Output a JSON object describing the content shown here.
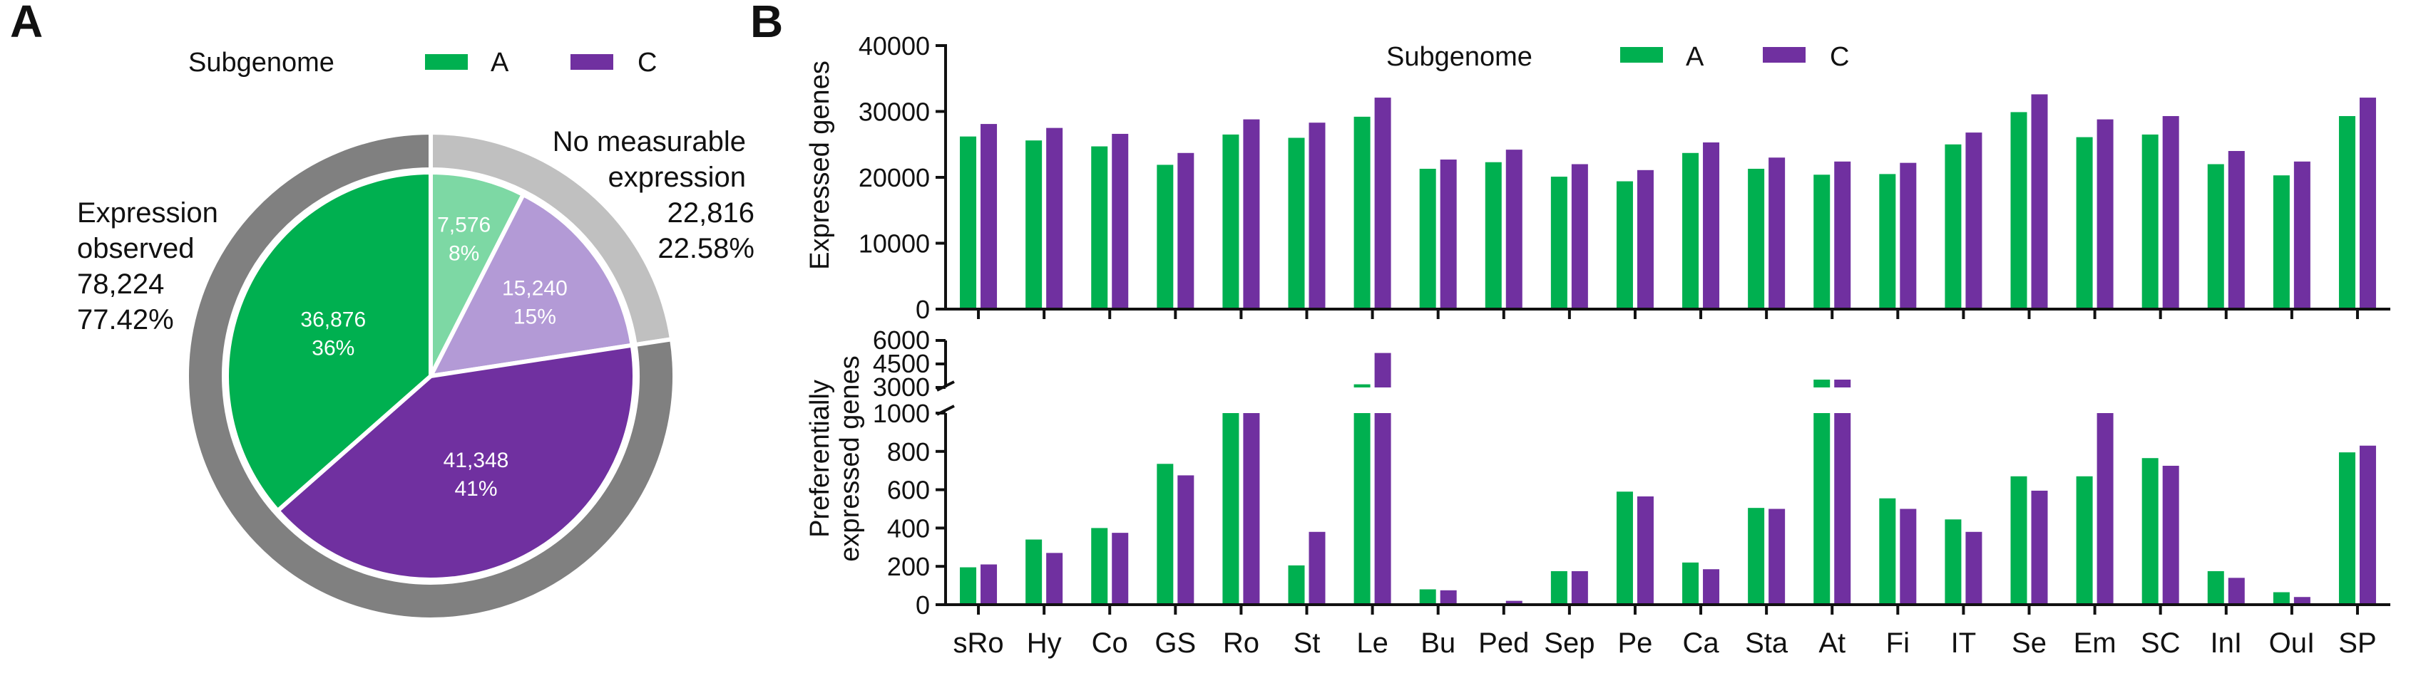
{
  "colors": {
    "A": "#00b050",
    "C": "#7030a0",
    "A_light": "#7dd8a4",
    "C_light": "#b39ad6",
    "outer_expressed": "#808080",
    "outer_no_expr": "#c0c0c0"
  },
  "panels": {
    "a": "A",
    "b": "B"
  },
  "legend": {
    "title": "Subgenome",
    "A": "A",
    "C": "C"
  },
  "pie": {
    "outer": [
      {
        "key": "expressed",
        "value": 78224,
        "label_lines": [
          "Expression",
          "observed",
          "78,224",
          "77.42%"
        ]
      },
      {
        "key": "no_expr",
        "value": 22816,
        "label_lines": [
          "No measurable",
          "expression",
          "22,816",
          "22.58%"
        ]
      }
    ],
    "inner": [
      {
        "key": "A_no",
        "value": 7576,
        "text": "7,576",
        "pct": "8%"
      },
      {
        "key": "C_no",
        "value": 15240,
        "text": "15,240",
        "pct": "15%"
      },
      {
        "key": "C_expr",
        "value": 41348,
        "text": "41,348",
        "pct": "41%"
      },
      {
        "key": "A_expr",
        "value": 36876,
        "text": "36,876",
        "pct": "36%"
      }
    ]
  },
  "chart_data": [
    {
      "type": "bar",
      "title": "Expressed genes",
      "ylabel": "Expressed genes",
      "ylim": [
        0,
        40000
      ],
      "yticks": [
        0,
        10000,
        20000,
        30000,
        40000
      ],
      "categories": [
        "sRo",
        "Hy",
        "Co",
        "GS",
        "Ro",
        "St",
        "Le",
        "Bu",
        "Ped",
        "Sep",
        "Pe",
        "Ca",
        "Sta",
        "At",
        "Fi",
        "IT",
        "Se",
        "Em",
        "SC",
        "InI",
        "OuI",
        "SP"
      ],
      "series": [
        {
          "name": "A",
          "values": [
            26200,
            25600,
            24700,
            21900,
            26500,
            26000,
            29200,
            21300,
            22300,
            20100,
            19400,
            23700,
            21300,
            20400,
            20500,
            25000,
            29900,
            26100,
            26500,
            22000,
            20300,
            29300
          ]
        },
        {
          "name": "C",
          "values": [
            28100,
            27500,
            26600,
            23700,
            28800,
            28300,
            32100,
            22700,
            24200,
            22000,
            21100,
            25300,
            23000,
            22400,
            22200,
            26800,
            32600,
            28800,
            29300,
            24000,
            22400,
            32100
          ]
        }
      ]
    },
    {
      "type": "bar",
      "title": "Preferentially expressed genes",
      "ylabel": "Preferentially expressed genes",
      "ylabel_lines": [
        "Preferentially",
        "expressed genes"
      ],
      "axis_break": {
        "lower_range": [
          0,
          1000
        ],
        "upper_range": [
          3000,
          6000
        ]
      },
      "yticks_lower": [
        0,
        200,
        400,
        600,
        800,
        1000
      ],
      "yticks_upper": [
        3000,
        4500,
        6000
      ],
      "categories": [
        "sRo",
        "Hy",
        "Co",
        "GS",
        "Ro",
        "St",
        "Le",
        "Bu",
        "Ped",
        "Sep",
        "Pe",
        "Ca",
        "Sta",
        "At",
        "Fi",
        "IT",
        "Se",
        "Em",
        "SC",
        "InI",
        "OuI",
        "SP"
      ],
      "series": [
        {
          "name": "A",
          "values": [
            195,
            340,
            400,
            735,
            1000,
            205,
            3200,
            80,
            3,
            175,
            590,
            220,
            505,
            3500,
            555,
            445,
            670,
            670,
            765,
            175,
            65,
            795
          ]
        },
        {
          "name": "C",
          "values": [
            210,
            270,
            375,
            675,
            1000,
            380,
            5200,
            75,
            20,
            175,
            565,
            185,
            500,
            3500,
            500,
            380,
            595,
            1000,
            725,
            140,
            40,
            830
          ]
        }
      ]
    }
  ]
}
